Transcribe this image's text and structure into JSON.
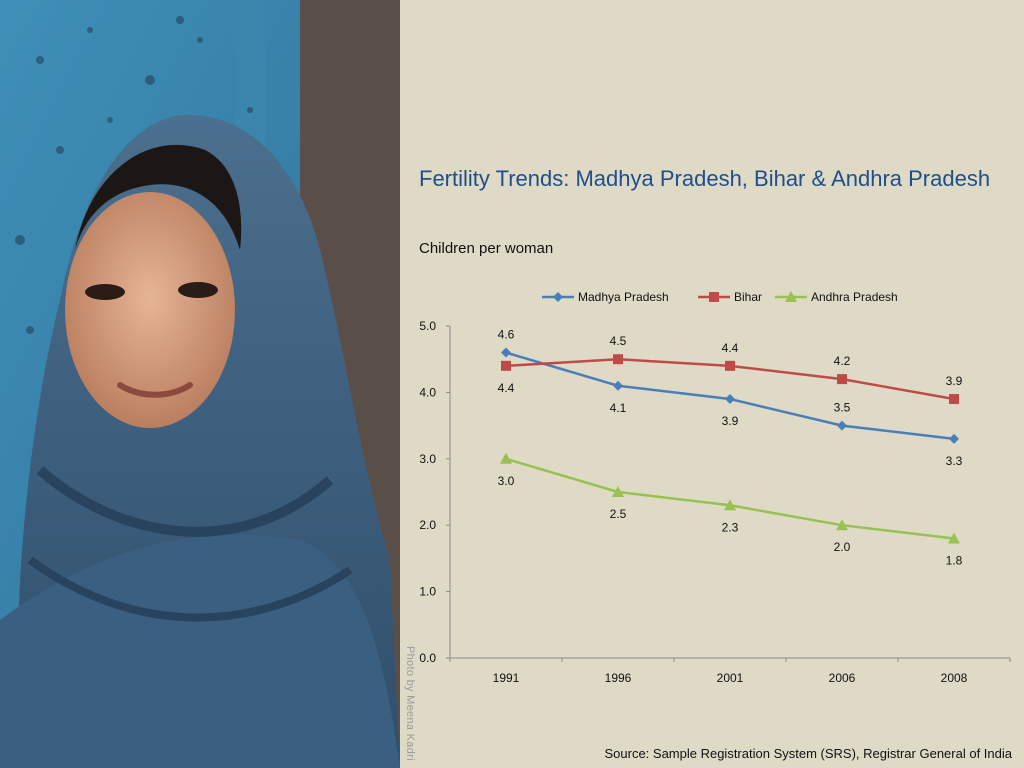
{
  "credit": "Photo by Meena Kadri",
  "source": "Source: Sample Registration System (SRS), Registrar General of India",
  "chart_data": {
    "type": "line",
    "title": "Fertility Trends: Madhya Pradesh, Bihar & Andhra Pradesh",
    "ylabel": "Children per woman",
    "xlabel": "",
    "categories": [
      "1991",
      "1996",
      "2001",
      "2006",
      "2008"
    ],
    "yticks": [
      "0.0",
      "1.0",
      "2.0",
      "3.0",
      "4.0",
      "5.0"
    ],
    "ylim": [
      0,
      5
    ],
    "grid": false,
    "legend": "top",
    "series": [
      {
        "name": "Madhya Pradesh",
        "values": [
          4.6,
          4.1,
          3.9,
          3.5,
          3.3
        ],
        "labels": [
          "4.6",
          "4.1",
          "3.9",
          "3.5",
          "3.3"
        ],
        "color": "#4a7ebb",
        "marker": "diamond"
      },
      {
        "name": "Bihar",
        "values": [
          4.4,
          4.5,
          4.4,
          4.2,
          3.9
        ],
        "labels": [
          "4.4",
          "4.5",
          "4.4",
          "4.2",
          "3.9"
        ],
        "color": "#be4b48",
        "marker": "square"
      },
      {
        "name": "Andhra Pradesh",
        "values": [
          3.0,
          2.5,
          2.3,
          2.0,
          1.8
        ],
        "labels": [
          "3.0",
          "2.5",
          "2.3",
          "2.0",
          "1.8"
        ],
        "color": "#98c152",
        "marker": "triangle"
      }
    ]
  }
}
